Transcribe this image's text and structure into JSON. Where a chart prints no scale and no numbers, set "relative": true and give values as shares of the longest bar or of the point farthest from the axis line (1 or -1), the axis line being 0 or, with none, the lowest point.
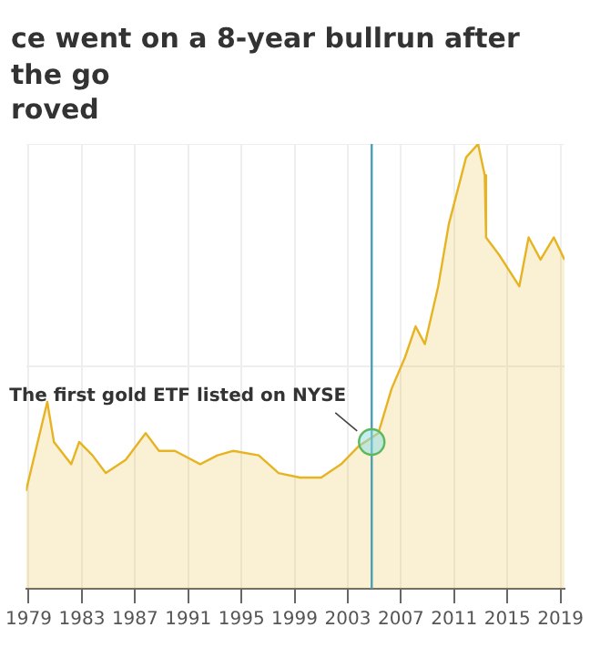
{
  "chart_data": {
    "type": "area",
    "title": "ce went on a 8-year bullrun after the go\nroved",
    "relative": true,
    "x": [
      1978.8,
      1980.4,
      1980.9,
      1982.2,
      1982.8,
      1983.8,
      1984.8,
      1986.3,
      1987.8,
      1988.8,
      1990.0,
      1991.9,
      1993.2,
      1994.4,
      1996.3,
      1997.8,
      1999.4,
      2001.0,
      2002.5,
      2003.8,
      2005.3,
      2006.3,
      2007.3,
      2008.1,
      2008.8,
      2009.8,
      2010.6,
      2011.9,
      2012.8,
      2013.3,
      2013.4,
      2014.4,
      2015.9,
      2016.6,
      2017.5,
      2018.5,
      2019.3
    ],
    "series": [
      {
        "color": "#e6b422",
        "values": [
          0.22,
          0.42,
          0.33,
          0.28,
          0.33,
          0.3,
          0.26,
          0.29,
          0.35,
          0.31,
          0.31,
          0.28,
          0.3,
          0.31,
          0.3,
          0.26,
          0.25,
          0.25,
          0.28,
          0.32,
          0.35,
          0.45,
          0.52,
          0.59,
          0.55,
          0.68,
          0.82,
          0.97,
          1.0,
          0.93,
          0.79,
          0.75,
          0.68,
          0.79,
          0.74,
          0.79,
          0.74
        ]
      }
    ],
    "xlim": [
      1978.8,
      2019.3
    ],
    "xticks": [
      1979,
      1983,
      1987,
      1991,
      1995,
      1999,
      2003,
      2007,
      2011,
      2015,
      2019
    ],
    "ref_lines": [
      {
        "axis": "x",
        "value": 2004.8,
        "color": "#4a9fb5"
      }
    ],
    "annotations": [
      {
        "text": "The first gold ETF listed on NYSE",
        "x": 2004.8,
        "y": 0.33
      }
    ],
    "grid": true,
    "legend": false
  }
}
